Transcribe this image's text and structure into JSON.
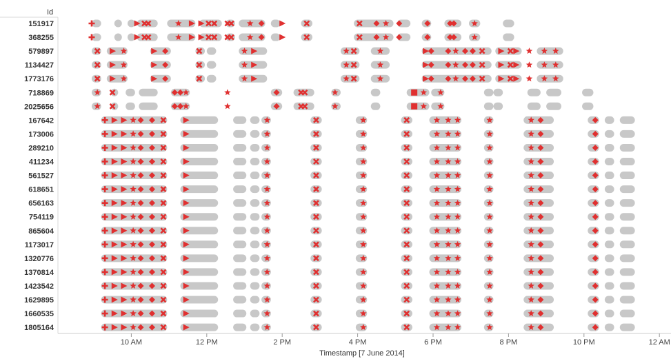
{
  "chart_data": {
    "type": "scatter",
    "title": "",
    "xlabel": "Timestamp [7 June 2014]",
    "ylabel": "Id",
    "x_ticks": [
      "10 AM",
      "12 PM",
      "2 PM",
      "4 PM",
      "6 PM",
      "8 PM",
      "10 PM",
      "12 AM"
    ],
    "xlim_hours": [
      8,
      24
    ],
    "bar_color": "#c8c8c8",
    "mark_color": "#e03030",
    "rows": [
      {
        "id": "151917",
        "pattern": "A"
      },
      {
        "id": "368255",
        "pattern": "A"
      },
      {
        "id": "579897",
        "pattern": "B"
      },
      {
        "id": "1134427",
        "pattern": "B"
      },
      {
        "id": "1773176",
        "pattern": "B"
      },
      {
        "id": "718869",
        "pattern": "C"
      },
      {
        "id": "2025656",
        "pattern": "C"
      },
      {
        "id": "167642",
        "pattern": "D"
      },
      {
        "id": "173006",
        "pattern": "D"
      },
      {
        "id": "289210",
        "pattern": "D"
      },
      {
        "id": "411234",
        "pattern": "D"
      },
      {
        "id": "561527",
        "pattern": "D"
      },
      {
        "id": "618651",
        "pattern": "D"
      },
      {
        "id": "656163",
        "pattern": "D"
      },
      {
        "id": "754119",
        "pattern": "D"
      },
      {
        "id": "865604",
        "pattern": "D"
      },
      {
        "id": "1173017",
        "pattern": "D"
      },
      {
        "id": "1320776",
        "pattern": "D"
      },
      {
        "id": "1370814",
        "pattern": "D"
      },
      {
        "id": "1423542",
        "pattern": "D"
      },
      {
        "id": "1629895",
        "pattern": "D"
      },
      {
        "id": "1660535",
        "pattern": "D"
      },
      {
        "id": "1805164",
        "pattern": "D"
      }
    ],
    "patterns": {
      "A": {
        "segments": [
          [
            8.95,
            9.2
          ],
          [
            9.55,
            9.75
          ],
          [
            9.9,
            10.1
          ],
          [
            10.15,
            10.7
          ],
          [
            10.95,
            11.7
          ],
          [
            11.8,
            12.4
          ],
          [
            12.5,
            12.75
          ],
          [
            12.85,
            13.55
          ],
          [
            13.7,
            13.95
          ],
          [
            14.5,
            14.8
          ],
          [
            15.9,
            16.95
          ],
          [
            17.05,
            17.4
          ],
          [
            17.7,
            17.95
          ],
          [
            18.3,
            18.75
          ],
          [
            18.95,
            19.25
          ],
          [
            19.85,
            20.15
          ]
        ],
        "marks": [
          [
            8.95,
            "cross"
          ],
          [
            10.15,
            "triangle"
          ],
          [
            10.35,
            "x"
          ],
          [
            10.45,
            "x"
          ],
          [
            11.25,
            "star"
          ],
          [
            11.6,
            "triangle"
          ],
          [
            11.85,
            "triangle"
          ],
          [
            12.05,
            "x"
          ],
          [
            12.2,
            "x"
          ],
          [
            12.55,
            "x"
          ],
          [
            12.65,
            "x"
          ],
          [
            13.15,
            "star"
          ],
          [
            13.45,
            "diamond"
          ],
          [
            14.0,
            "triangle"
          ],
          [
            14.65,
            "x"
          ],
          [
            16.05,
            "x"
          ],
          [
            16.5,
            "diamond"
          ],
          [
            16.75,
            "star"
          ],
          [
            17.1,
            "diamond"
          ],
          [
            17.85,
            "diamond"
          ],
          [
            18.45,
            "diamond"
          ],
          [
            18.55,
            "diamond"
          ],
          [
            19.1,
            "star"
          ]
        ]
      },
      "B": {
        "segments": [
          [
            8.95,
            9.2
          ],
          [
            9.35,
            9.9
          ],
          [
            10.5,
            11.05
          ],
          [
            11.7,
            11.95
          ],
          [
            12.0,
            12.25
          ],
          [
            12.85,
            13.6
          ],
          [
            15.55,
            16.05
          ],
          [
            16.35,
            16.85
          ],
          [
            17.7,
            19.55
          ],
          [
            19.65,
            20.35
          ],
          [
            20.75,
            21.45
          ]
        ],
        "marks": [
          [
            9.1,
            "x"
          ],
          [
            9.5,
            "triangle"
          ],
          [
            9.8,
            "star"
          ],
          [
            10.6,
            "triangle"
          ],
          [
            10.9,
            "diamond"
          ],
          [
            11.8,
            "x"
          ],
          [
            13.0,
            "star"
          ],
          [
            13.25,
            "triangle"
          ],
          [
            15.7,
            "star"
          ],
          [
            15.9,
            "x"
          ],
          [
            16.6,
            "star"
          ],
          [
            17.8,
            "triangle"
          ],
          [
            17.95,
            "diamond"
          ],
          [
            18.4,
            "diamond"
          ],
          [
            18.6,
            "star"
          ],
          [
            18.85,
            "diamond"
          ],
          [
            19.05,
            "diamond"
          ],
          [
            19.3,
            "x"
          ],
          [
            19.8,
            "triangle"
          ],
          [
            20.05,
            "x"
          ],
          [
            20.2,
            "triangle"
          ],
          [
            20.55,
            "star"
          ],
          [
            20.95,
            "star"
          ],
          [
            21.25,
            "star"
          ]
        ]
      },
      "C": {
        "segments": [
          [
            8.95,
            9.2
          ],
          [
            9.45,
            9.65
          ],
          [
            9.85,
            10.1
          ],
          [
            10.2,
            10.7
          ],
          [
            11.05,
            11.55
          ],
          [
            13.7,
            14.0
          ],
          [
            14.3,
            14.85
          ],
          [
            15.3,
            15.55
          ],
          [
            16.35,
            16.6
          ],
          [
            17.3,
            17.9
          ],
          [
            17.95,
            18.3
          ],
          [
            19.35,
            19.6
          ],
          [
            19.6,
            19.85
          ],
          [
            20.5,
            20.85
          ],
          [
            21.0,
            21.4
          ],
          [
            21.95,
            22.25
          ]
        ],
        "marks": [
          [
            9.1,
            "star"
          ],
          [
            9.5,
            "x"
          ],
          [
            11.15,
            "diamond"
          ],
          [
            11.3,
            "diamond"
          ],
          [
            11.45,
            "star"
          ],
          [
            12.55,
            "star"
          ],
          [
            13.85,
            "diamond"
          ],
          [
            14.5,
            "x"
          ],
          [
            14.6,
            "x"
          ],
          [
            15.4,
            "star"
          ],
          [
            17.5,
            "square"
          ],
          [
            17.75,
            "star"
          ],
          [
            18.2,
            "star"
          ]
        ]
      },
      "D": {
        "segments": [
          [
            9.2,
            10.95
          ],
          [
            11.3,
            12.3
          ],
          [
            12.7,
            13.05
          ],
          [
            13.15,
            13.4
          ],
          [
            13.45,
            13.7
          ],
          [
            14.75,
            15.05
          ],
          [
            15.95,
            16.25
          ],
          [
            17.15,
            17.45
          ],
          [
            17.9,
            18.75
          ],
          [
            19.35,
            19.6
          ],
          [
            20.4,
            21.2
          ],
          [
            22.1,
            22.4
          ],
          [
            22.55,
            22.8
          ],
          [
            22.95,
            23.35
          ]
        ],
        "marks": [
          [
            9.3,
            "cross"
          ],
          [
            9.55,
            "triangle"
          ],
          [
            9.8,
            "triangle"
          ],
          [
            10.05,
            "star"
          ],
          [
            10.25,
            "diamond"
          ],
          [
            10.55,
            "diamond"
          ],
          [
            10.85,
            "x"
          ],
          [
            11.45,
            "triangle"
          ],
          [
            13.6,
            "star"
          ],
          [
            14.9,
            "x"
          ],
          [
            16.15,
            "star"
          ],
          [
            17.3,
            "x"
          ],
          [
            18.1,
            "star"
          ],
          [
            18.4,
            "star"
          ],
          [
            18.65,
            "star"
          ],
          [
            19.5,
            "star"
          ],
          [
            20.6,
            "star"
          ],
          [
            20.85,
            "diamond"
          ],
          [
            22.3,
            "diamond"
          ]
        ]
      }
    }
  }
}
